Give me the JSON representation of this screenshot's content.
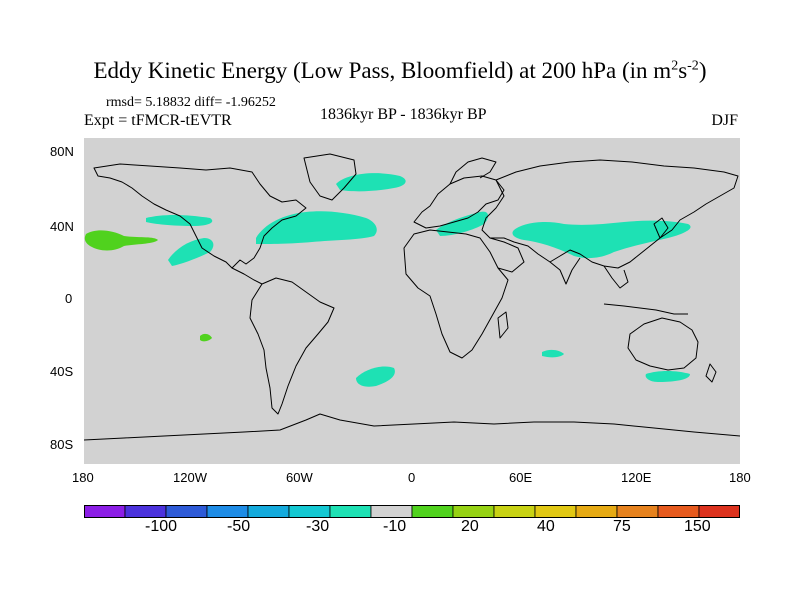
{
  "title": {
    "main": "Eddy Kinetic Energy (Low Pass, Bloomfield) at 200 hPa (in m",
    "sup1": "2",
    "mid": "s",
    "sup2": "-2",
    "close": ")"
  },
  "stats": "rmsd= 5.18832 diff= -1.96252",
  "experiment": "Expt = tFMCR-tEVTR",
  "period": "1836kyr BP - 1836kyr BP",
  "season": "DJF",
  "lat_labels": [
    "80N",
    "40N",
    "0",
    "40S",
    "80S"
  ],
  "lon_labels": [
    "180",
    "120W",
    "60W",
    "0",
    "60E",
    "120E",
    "180"
  ],
  "colorbar": {
    "labels": [
      "-100",
      "-50",
      "-30",
      "-10",
      "20",
      "40",
      "75",
      "150"
    ],
    "colors": [
      "#8c1ee6",
      "#4b32dc",
      "#2d5ad7",
      "#1e8ce6",
      "#14aadc",
      "#14c8d2",
      "#1ee1b4",
      "#d2d2d2",
      "#50d21e",
      "#96d214",
      "#c8d214",
      "#e1c814",
      "#e6aa14",
      "#e6821e",
      "#e65a1e",
      "#dc321e"
    ]
  },
  "colors": {
    "land_ocean": "#d2d2d2",
    "light_positive": "#1ee1b4",
    "green_positive": "#50d21e"
  }
}
